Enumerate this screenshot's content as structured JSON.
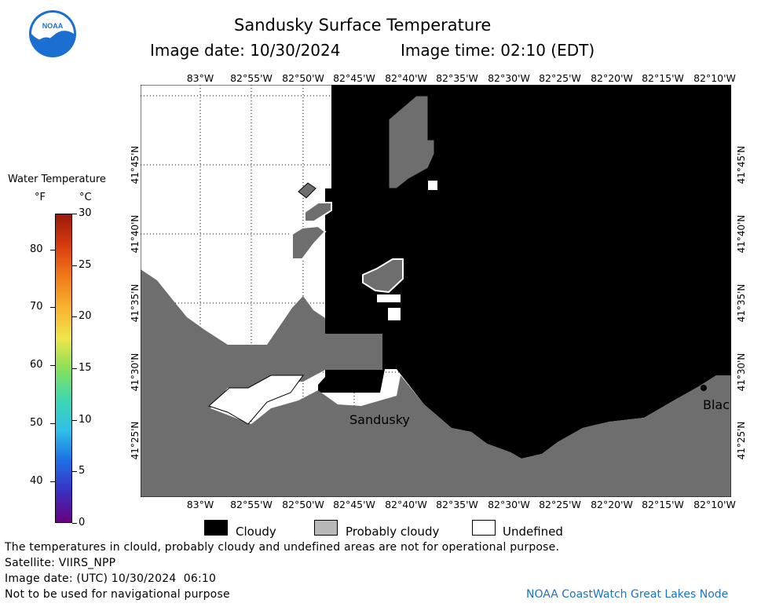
{
  "header": {
    "title": "Sandusky Surface Temperature",
    "image_date": "Image date: 10/30/2024",
    "image_time": "Image time: 02:10 (EDT)",
    "logo_text": "NOAA"
  },
  "colorbar": {
    "title": "Water Temperature",
    "unit_f": "°F",
    "unit_c": "°C",
    "f_ticks": [
      "80",
      "70",
      "60",
      "50",
      "40"
    ],
    "c_ticks": [
      "30",
      "25",
      "20",
      "15",
      "10",
      "5",
      "0"
    ],
    "colors": [
      "#6a0080",
      "#3b2fc0",
      "#1e6fe6",
      "#2fc0e6",
      "#3fd8b0",
      "#8be05a",
      "#f0e64a",
      "#f8b030",
      "#f07a18",
      "#d83a10",
      "#9a1a0a"
    ]
  },
  "map": {
    "lon_labels": [
      "83°W",
      "82°55'W",
      "82°50'W",
      "82°45'W",
      "82°40'W",
      "82°35'W",
      "82°30'W",
      "82°25'W",
      "82°20'W",
      "82°15'W",
      "82°10'W"
    ],
    "lat_labels": [
      "41°45'N",
      "41°40'N",
      "41°35'N",
      "41°30'N",
      "41°25'N"
    ],
    "places": [
      "Sandusky",
      "Blac"
    ],
    "colors": {
      "cloudy": "#000000",
      "probably_cloudy": "#6e6e6e",
      "undefined": "#ffffff"
    }
  },
  "legend": {
    "cloudy": "Cloudy",
    "probably_cloudy": "Probably cloudy",
    "undefined": "Undefined"
  },
  "footer": {
    "disclaimer": "The temperatures in clould, probably cloudy and undefined areas are not for operational purpose.",
    "satellite": "Satellite: VIIRS_NPP",
    "utc_date": "Image date: (UTC) 10/30/2024  06:10",
    "nav_warning": "Not to be used for navigational purpose",
    "credit": "NOAA CoastWatch Great Lakes Node"
  }
}
